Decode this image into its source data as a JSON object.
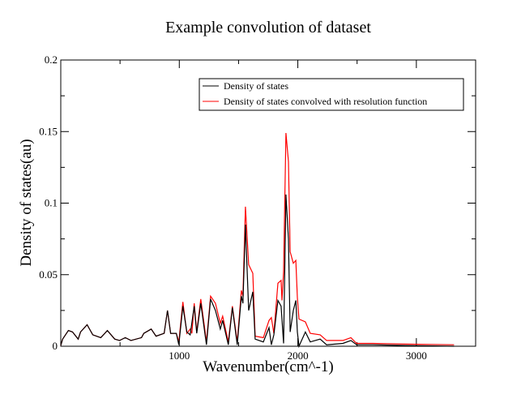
{
  "chart_data": {
    "type": "line",
    "title": "Example convolution of dataset",
    "xlabel": "Wavenumber(cm^-1)",
    "ylabel": "Density of states(au)",
    "xlim": [
      0,
      3500
    ],
    "ylim": [
      0,
      0.2
    ],
    "xticks": [
      1000,
      2000,
      3000
    ],
    "xtick_labels": [
      "1000",
      "2000",
      "3000"
    ],
    "yticks": [
      0,
      0.05,
      0.1,
      0.15,
      0.2
    ],
    "ytick_labels": [
      "0",
      "0.05",
      "0.1",
      "0.15",
      "0.2"
    ],
    "grid": false,
    "legend_position": "top-right",
    "series": [
      {
        "name": "Density of states",
        "color": "#000000",
        "x": [
          0,
          16,
          64,
          99,
          147,
          167,
          222,
          270,
          338,
          393,
          455,
          496,
          544,
          592,
          681,
          701,
          763,
          804,
          872,
          900,
          927,
          975,
          996,
          1030,
          1064,
          1092,
          1126,
          1147,
          1181,
          1229,
          1264,
          1305,
          1346,
          1366,
          1414,
          1448,
          1489,
          1524,
          1537,
          1558,
          1585,
          1620,
          1640,
          1709,
          1757,
          1777,
          1798,
          1832,
          1859,
          1880,
          1900,
          1921,
          1935,
          1962,
          1983,
          1996,
          2010,
          2064,
          2105,
          2188,
          2243,
          2380,
          2448,
          2496,
          2633,
          2907,
          3318
        ],
        "y": [
          0.0005,
          0.005,
          0.011,
          0.01,
          0.005,
          0.01,
          0.015,
          0.008,
          0.006,
          0.011,
          0.005,
          0.004,
          0.006,
          0.004,
          0.006,
          0.009,
          0.012,
          0.007,
          0.009,
          0.025,
          0.009,
          0.009,
          0.001,
          0.028,
          0.01,
          0.008,
          0.028,
          0.009,
          0.03,
          0.001,
          0.033,
          0.025,
          0.012,
          0.018,
          0.001,
          0.027,
          0.001,
          0.035,
          0.03,
          0.085,
          0.025,
          0.038,
          0.005,
          0.003,
          0.013,
          0.001,
          0.008,
          0.032,
          0.028,
          0.002,
          0.106,
          0.075,
          0.01,
          0.025,
          0.032,
          0.01,
          0.0,
          0.01,
          0.003,
          0.005,
          0.001,
          0.002,
          0.004,
          0.001,
          0.001,
          0.0005,
          0.0
        ]
      },
      {
        "name": "Density of states convolved with resolution function",
        "color": "#ff0000",
        "x": [
          0,
          16,
          64,
          99,
          147,
          167,
          222,
          270,
          338,
          393,
          455,
          496,
          544,
          592,
          681,
          701,
          763,
          804,
          872,
          900,
          927,
          975,
          996,
          1030,
          1064,
          1092,
          1106,
          1126,
          1147,
          1181,
          1229,
          1264,
          1305,
          1346,
          1366,
          1414,
          1448,
          1489,
          1524,
          1537,
          1558,
          1585,
          1620,
          1640,
          1709,
          1757,
          1777,
          1798,
          1832,
          1859,
          1866,
          1880,
          1900,
          1921,
          1935,
          1962,
          1983,
          1996,
          2010,
          2064,
          2105,
          2188,
          2243,
          2380,
          2448,
          2496,
          2633,
          2907,
          3318
        ],
        "y": [
          0.0005,
          0.005,
          0.011,
          0.01,
          0.005,
          0.01,
          0.015,
          0.008,
          0.006,
          0.011,
          0.005,
          0.004,
          0.006,
          0.004,
          0.006,
          0.009,
          0.012,
          0.007,
          0.009,
          0.025,
          0.009,
          0.009,
          0.003,
          0.031,
          0.009,
          0.012,
          0.009,
          0.03,
          0.01,
          0.033,
          0.003,
          0.035,
          0.03,
          0.016,
          0.021,
          0.003,
          0.028,
          0.003,
          0.039,
          0.035,
          0.0975,
          0.057,
          0.051,
          0.007,
          0.006,
          0.018,
          0.02,
          0.009,
          0.044,
          0.046,
          0.032,
          0.052,
          0.149,
          0.129,
          0.066,
          0.058,
          0.06,
          0.034,
          0.019,
          0.017,
          0.009,
          0.008,
          0.004,
          0.004,
          0.006,
          0.002,
          0.002,
          0.0015,
          0.001
        ]
      }
    ]
  }
}
